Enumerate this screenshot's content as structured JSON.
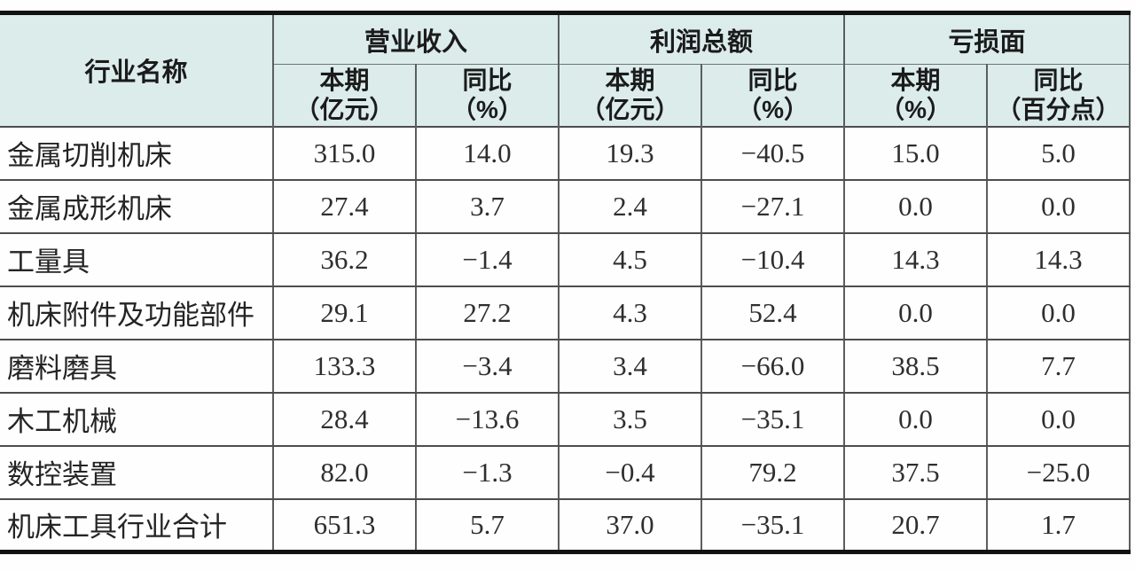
{
  "table": {
    "header": {
      "industry_label": "行业名称",
      "groups": [
        {
          "label": "营业收入",
          "sub": [
            {
              "line1": "本期",
              "line2": "（亿元）"
            },
            {
              "line1": "同比",
              "line2": "（%）"
            }
          ]
        },
        {
          "label": "利润总额",
          "sub": [
            {
              "line1": "本期",
              "line2": "（亿元）"
            },
            {
              "line1": "同比",
              "line2": "（%）"
            }
          ]
        },
        {
          "label": "亏损面",
          "sub": [
            {
              "line1": "本期",
              "line2": "（%）"
            },
            {
              "line1": "同比",
              "line2": "（百分点）"
            }
          ]
        }
      ]
    },
    "rows": [
      {
        "name": "金属切削机床",
        "values": [
          "315.0",
          "14.0",
          "19.3",
          "−40.5",
          "15.0",
          "5.0"
        ]
      },
      {
        "name": "金属成形机床",
        "values": [
          "27.4",
          "3.7",
          "2.4",
          "−27.1",
          "0.0",
          "0.0"
        ]
      },
      {
        "name": "工量具",
        "values": [
          "36.2",
          "−1.4",
          "4.5",
          "−10.4",
          "14.3",
          "14.3"
        ]
      },
      {
        "name": "机床附件及功能部件",
        "values": [
          "29.1",
          "27.2",
          "4.3",
          "52.4",
          "0.0",
          "0.0"
        ]
      },
      {
        "name": "磨料磨具",
        "values": [
          "133.3",
          "−3.4",
          "3.4",
          "−66.0",
          "38.5",
          "7.7"
        ]
      },
      {
        "name": "木工机械",
        "values": [
          "28.4",
          "−13.6",
          "3.5",
          "−35.1",
          "0.0",
          "0.0"
        ]
      },
      {
        "name": "数控装置",
        "values": [
          "82.0",
          "−1.3",
          "−0.4",
          "79.2",
          "37.5",
          "−25.0"
        ]
      },
      {
        "name": "机床工具行业合计",
        "values": [
          "651.3",
          "5.7",
          "37.0",
          "−35.1",
          "20.7",
          "1.7"
        ]
      }
    ]
  },
  "colors": {
    "header_bg": "#dbeceb",
    "outer_border": "#121212",
    "vertical_line": "#5a5e5e",
    "horizontal_line": "#4d4d4d",
    "text": "#242424"
  },
  "chart_data": {
    "type": "table",
    "title": "",
    "columns": [
      "行业名称",
      "营业收入 本期（亿元）",
      "营业收入 同比（%）",
      "利润总额 本期（亿元）",
      "利润总额 同比（%）",
      "亏损面 本期（%）",
      "亏损面 同比（百分点）"
    ],
    "rows": [
      [
        "金属切削机床",
        315.0,
        14.0,
        19.3,
        -40.5,
        15.0,
        5.0
      ],
      [
        "金属成形机床",
        27.4,
        3.7,
        2.4,
        -27.1,
        0.0,
        0.0
      ],
      [
        "工量具",
        36.2,
        -1.4,
        4.5,
        -10.4,
        14.3,
        14.3
      ],
      [
        "机床附件及功能部件",
        29.1,
        27.2,
        4.3,
        52.4,
        0.0,
        0.0
      ],
      [
        "磨料磨具",
        133.3,
        -3.4,
        3.4,
        -66.0,
        38.5,
        7.7
      ],
      [
        "木工机械",
        28.4,
        -13.6,
        3.5,
        -35.1,
        0.0,
        0.0
      ],
      [
        "数控装置",
        82.0,
        -1.3,
        -0.4,
        79.2,
        37.5,
        -25.0
      ],
      [
        "机床工具行业合计",
        651.3,
        5.7,
        37.0,
        -35.1,
        20.7,
        1.7
      ]
    ]
  }
}
